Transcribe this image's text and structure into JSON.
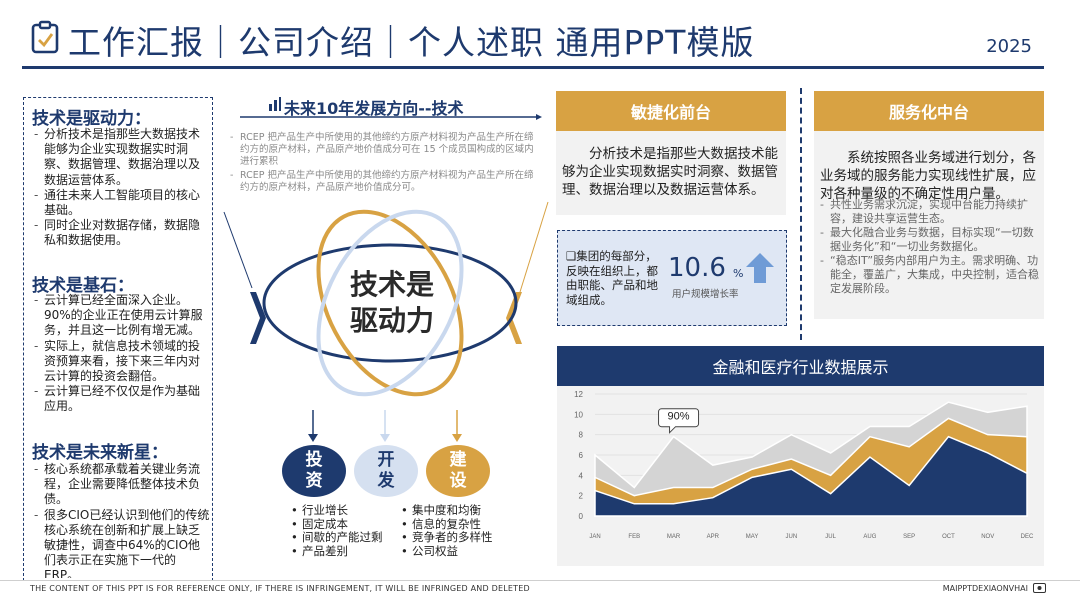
{
  "header": {
    "title": "工作汇报｜公司介绍｜个人述职 通用PPT模版",
    "year": "2025"
  },
  "left_panel": {
    "sections": [
      {
        "heading": "技术是驱动力：",
        "items": [
          "分析技术是指那些大数据技术能够为企业实现数据实时洞察、数据管理、数据治理以及数据运营体系。",
          "通往未来人工智能项目的核心基础。",
          "同时企业对数据存储，数据隐私和数据使用。"
        ]
      },
      {
        "heading": "技术是基石：",
        "items": [
          "云计算已经全面深入企业。90%的企业正在使用云计算服务，并且这一比例有增无减。",
          "实际上，就信息技术领域的投资预算来看，接下来三年内对云计算的投资会翻倍。",
          "云计算已经不仅仅是作为基础应用。"
        ]
      },
      {
        "heading": "技术是未来新星：",
        "items": [
          "核心系统都承载着关键业务流程，企业需要降低整体技术负债。",
          "很多CIO已经认识到他们的传统核心系统在创新和扩展上缺乏敏捷性，调查中64%的CIO他们表示正在实施下一代的ERP。"
        ]
      }
    ]
  },
  "center": {
    "heading": "未来10年发展方向--技术",
    "notes": [
      "RCEP 把产品生产中所使用的其他缔约方原产材料视为产品生产所在缔约方的原产材料，产品原产地价值成分可在 15 个成员国构成的区域内进行累积",
      "RCEP 把产品生产中所使用的其他缔约方原产材料视为产品生产所在缔约方的原产材料，产品原产地价值成分可。"
    ],
    "core_line1": "技术是",
    "core_line2": "驱动力",
    "circles": [
      {
        "line1": "投",
        "line2": "资",
        "color": "#1e3a6e"
      },
      {
        "line1": "开",
        "line2": "发",
        "color": "#d5e0f0"
      },
      {
        "line1": "建",
        "line2": "设",
        "color": "#d8a243"
      }
    ],
    "list_left": [
      "行业增长",
      "固定成本",
      "间歇的产能过剩",
      "产品差别"
    ],
    "list_right": [
      "集中度和均衡",
      "信息的复杂性",
      "竞争者的多样性",
      "公司权益"
    ]
  },
  "agile": {
    "title": "敏捷化前台",
    "body": "分析技术是指那些大数据技术能够为企业实现数据实时洞察、数据管理、数据治理以及数据运营体系。"
  },
  "stat": {
    "text": "❑集团的每部分，反映在组织上，都由职能、产品和地域组成。",
    "value": "10.6",
    "unit": "%",
    "label": "用户规模增长率"
  },
  "service": {
    "title": "服务化中台",
    "body": "系统按照各业务域进行划分，各业务域的服务能力实现线性扩展，应对各种量级的不确定性用户量。",
    "items": [
      "共性业务需求沉淀，实现中台能力持续扩容，建设共享运营生态。",
      "最大化融合业务与数据，目标实现“一切数据业务化”和“一切业务数据化。",
      "“稳态IT”服务内部用户为主。需求明确、功能全，覆盖广，大集成，中央控制，适合稳定发展阶段。"
    ]
  },
  "chart_data": {
    "type": "area",
    "title": "金融和医疗行业数据展示",
    "categories": [
      "JAN",
      "FEB",
      "MAR",
      "APR",
      "MAY",
      "JUN",
      "JUL",
      "AUG",
      "SEP",
      "OCT",
      "NOV",
      "DEC"
    ],
    "ylim": [
      0,
      12
    ],
    "yticks": [
      0,
      2,
      4,
      6,
      8,
      10,
      12
    ],
    "annotation": "90%",
    "colors": [
      "#1e3a6e",
      "#d8a243",
      "#d4d4d4"
    ],
    "series": [
      {
        "values": [
          2.5,
          1.2,
          1.2,
          1.8,
          3.8,
          4.6,
          2.2,
          5.8,
          3.0,
          7.8,
          6.2,
          4.2
        ]
      },
      {
        "values": [
          3.8,
          2.0,
          2.8,
          2.8,
          4.6,
          5.6,
          4.0,
          7.8,
          6.8,
          9.6,
          8.0,
          7.8
        ]
      },
      {
        "values": [
          6.0,
          2.8,
          7.8,
          5.0,
          5.8,
          8.0,
          6.2,
          8.8,
          8.8,
          11.2,
          10.2,
          10.8
        ]
      }
    ],
    "grid": true
  },
  "footer": {
    "notice": "THE CONTENT OF THIS PPT IS FOR REFERENCE ONLY, IF THERE IS INFRINGEMENT, IT WILL BE INFRINGED AND DELETED",
    "brand": "MAIPPTDEXIAONVHAI"
  }
}
